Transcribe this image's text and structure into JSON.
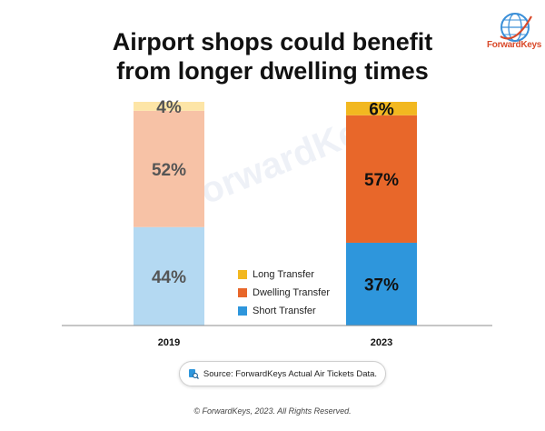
{
  "title_line1": "Airport shops could benefit",
  "title_line2": "from longer dwelling times",
  "brand": "ForwardKeys",
  "watermark": "ForwardKeys",
  "source_text": "Source: ForwardKeys Actual Air Tickets Data.",
  "copyright": "© ForwardKeys, 2023. All Rights Reserved.",
  "colors": {
    "2019": {
      "long": "#fde5a6",
      "dwelling": "#f7c2a6",
      "short": "#b4d9f2"
    },
    "2023": {
      "long": "#f2b820",
      "dwelling": "#e8672a",
      "short": "#2e96dc"
    }
  },
  "chart_data": {
    "type": "bar",
    "stacked": true,
    "categories": [
      "2019",
      "2023"
    ],
    "series": [
      {
        "name": "Long Transfer",
        "values": [
          4,
          6
        ],
        "labels": [
          "4%",
          "6%"
        ]
      },
      {
        "name": "Dwelling Transfer",
        "values": [
          52,
          57
        ],
        "labels": [
          "52%",
          "57%"
        ]
      },
      {
        "name": "Short Transfer",
        "values": [
          44,
          37
        ],
        "labels": [
          "44%",
          "37%"
        ]
      }
    ],
    "ylim": [
      0,
      100
    ],
    "legend": [
      "Long Transfer",
      "Dwelling Transfer",
      "Short Transfer"
    ],
    "legend_colors": [
      "#f2b820",
      "#e8672a",
      "#2e96dc"
    ],
    "grid": false
  }
}
